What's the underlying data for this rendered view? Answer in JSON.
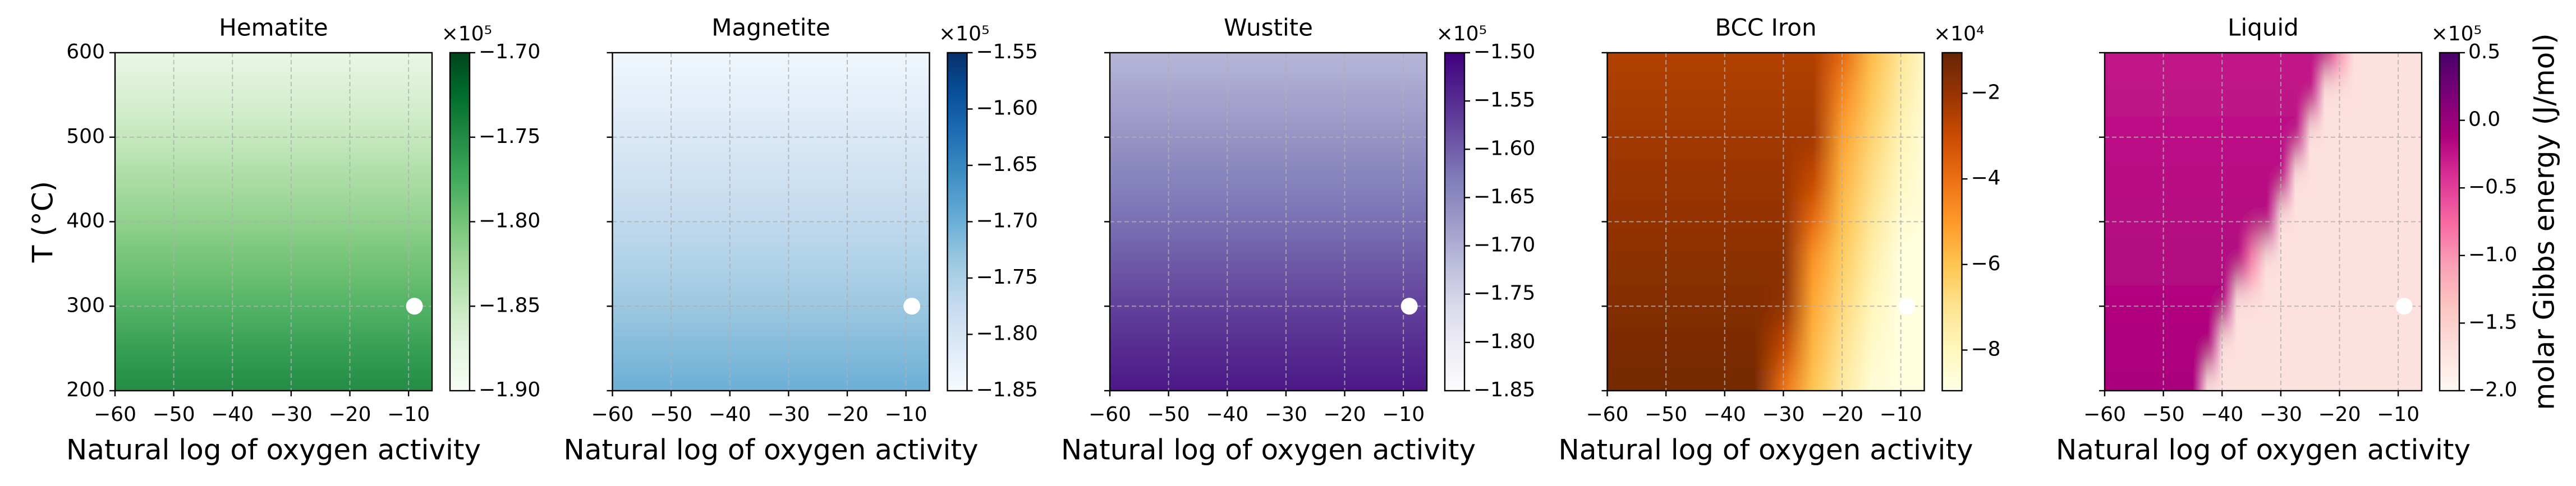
{
  "chart_data": [
    {
      "type": "heatmap",
      "title": "Hematite",
      "xlabel": "Natural log of oxygen activity",
      "ylabel": "T (°C)",
      "xlim": [
        -60,
        -6
      ],
      "xticks": [
        {
          "value": -60,
          "label": "−60"
        },
        {
          "value": -50,
          "label": "−50"
        },
        {
          "value": -40,
          "label": "−40"
        },
        {
          "value": -30,
          "label": "−30"
        },
        {
          "value": -20,
          "label": "−20"
        },
        {
          "value": -10,
          "label": "−10"
        }
      ],
      "ylim": [
        200,
        600
      ],
      "yticks": [
        200,
        300,
        400,
        500,
        600
      ],
      "ytick_labels": true,
      "grid": true,
      "x_grid": [
        -60,
        -6
      ],
      "y_grid": [
        200,
        250,
        300,
        350,
        400,
        450,
        500,
        550,
        600
      ],
      "z": [
        [
          -1.75,
          -1.75
        ],
        [
          -1.766,
          -1.766
        ],
        [
          -1.783,
          -1.783
        ],
        [
          -1.799,
          -1.799
        ],
        [
          -1.815,
          -1.815
        ],
        [
          -1.831,
          -1.831
        ],
        [
          -1.848,
          -1.848
        ],
        [
          -1.864,
          -1.864
        ],
        [
          -1.88,
          -1.88
        ]
      ],
      "point": {
        "x": -9,
        "y": 300,
        "color": "#ffffff"
      },
      "colorbar": {
        "lim": [
          -1.9,
          -1.7
        ],
        "ticks": [
          {
            "value": -1.9,
            "label": "−1.90"
          },
          {
            "value": -1.85,
            "label": "−1.85"
          },
          {
            "value": -1.8,
            "label": "−1.80"
          },
          {
            "value": -1.75,
            "label": "−1.75"
          },
          {
            "value": -1.7,
            "label": "−1.70"
          }
        ],
        "multiplier": "×10⁵",
        "colormap": [
          "#f7fcf5",
          "#e5f5e0",
          "#c7e9c0",
          "#a1d99b",
          "#74c476",
          "#41ab5d",
          "#238b45",
          "#006d2c",
          "#00441b"
        ]
      }
    },
    {
      "type": "heatmap",
      "title": "Magnetite",
      "xlabel": "Natural log of oxygen activity",
      "xlim": [
        -60,
        -6
      ],
      "xticks": [
        {
          "value": -60,
          "label": "−60"
        },
        {
          "value": -50,
          "label": "−50"
        },
        {
          "value": -40,
          "label": "−40"
        },
        {
          "value": -30,
          "label": "−30"
        },
        {
          "value": -20,
          "label": "−20"
        },
        {
          "value": -10,
          "label": "−10"
        }
      ],
      "ylim": [
        200,
        600
      ],
      "yticks": [
        200,
        300,
        400,
        500,
        600
      ],
      "ytick_labels": false,
      "grid": true,
      "x_grid": [
        -60,
        -6
      ],
      "y_grid": [
        200,
        250,
        300,
        350,
        400,
        450,
        500,
        550,
        600
      ],
      "z": [
        [
          -1.7,
          -1.7
        ],
        [
          -1.718,
          -1.718
        ],
        [
          -1.735,
          -1.735
        ],
        [
          -1.753,
          -1.753
        ],
        [
          -1.77,
          -1.77
        ],
        [
          -1.788,
          -1.788
        ],
        [
          -1.805,
          -1.805
        ],
        [
          -1.823,
          -1.823
        ],
        [
          -1.84,
          -1.84
        ]
      ],
      "point": {
        "x": -9,
        "y": 300,
        "color": "#ffffff"
      },
      "colorbar": {
        "lim": [
          -1.85,
          -1.55
        ],
        "ticks": [
          {
            "value": -1.85,
            "label": "−1.85"
          },
          {
            "value": -1.8,
            "label": "−1.80"
          },
          {
            "value": -1.75,
            "label": "−1.75"
          },
          {
            "value": -1.7,
            "label": "−1.70"
          },
          {
            "value": -1.65,
            "label": "−1.65"
          },
          {
            "value": -1.6,
            "label": "−1.60"
          },
          {
            "value": -1.55,
            "label": "−1.55"
          }
        ],
        "multiplier": "×10⁵",
        "colormap": [
          "#f7fbff",
          "#deebf7",
          "#c6dbef",
          "#9ecae1",
          "#6baed6",
          "#4292c6",
          "#2171b5",
          "#08519c",
          "#08306b"
        ]
      }
    },
    {
      "type": "heatmap",
      "title": "Wustite",
      "xlabel": "Natural log of oxygen activity",
      "xlim": [
        -60,
        -6
      ],
      "xticks": [
        {
          "value": -60,
          "label": "−60"
        },
        {
          "value": -50,
          "label": "−50"
        },
        {
          "value": -40,
          "label": "−40"
        },
        {
          "value": -30,
          "label": "−30"
        },
        {
          "value": -20,
          "label": "−20"
        },
        {
          "value": -10,
          "label": "−10"
        }
      ],
      "ylim": [
        200,
        600
      ],
      "yticks": [
        200,
        300,
        400,
        500,
        600
      ],
      "ytick_labels": false,
      "grid": true,
      "x_grid": [
        -60,
        -6
      ],
      "y_grid": [
        200,
        250,
        300,
        350,
        400,
        450,
        500,
        550,
        600
      ],
      "z": [
        [
          -1.524,
          -1.524
        ],
        [
          -1.547,
          -1.547
        ],
        [
          -1.571,
          -1.571
        ],
        [
          -1.594,
          -1.594
        ],
        [
          -1.617,
          -1.617
        ],
        [
          -1.64,
          -1.64
        ],
        [
          -1.664,
          -1.664
        ],
        [
          -1.687,
          -1.687
        ],
        [
          -1.71,
          -1.71
        ]
      ],
      "point": {
        "x": -9,
        "y": 300,
        "color": "#ffffff"
      },
      "colorbar": {
        "lim": [
          -1.85,
          -1.5
        ],
        "ticks": [
          {
            "value": -1.85,
            "label": "−1.85"
          },
          {
            "value": -1.8,
            "label": "−1.80"
          },
          {
            "value": -1.75,
            "label": "−1.75"
          },
          {
            "value": -1.7,
            "label": "−1.70"
          },
          {
            "value": -1.65,
            "label": "−1.65"
          },
          {
            "value": -1.6,
            "label": "−1.60"
          },
          {
            "value": -1.55,
            "label": "−1.55"
          },
          {
            "value": -1.5,
            "label": "−1.50"
          }
        ],
        "multiplier": "×10⁵",
        "colormap": [
          "#fcfbfd",
          "#efedf5",
          "#dadaeb",
          "#bcbddc",
          "#9e9ac8",
          "#807dba",
          "#6a51a3",
          "#54278f",
          "#3f007d"
        ]
      }
    },
    {
      "type": "heatmap",
      "title": "BCC Iron",
      "xlabel": "Natural log of oxygen activity",
      "xlim": [
        -60,
        -6
      ],
      "xticks": [
        {
          "value": -60,
          "label": "−60"
        },
        {
          "value": -50,
          "label": "−50"
        },
        {
          "value": -40,
          "label": "−40"
        },
        {
          "value": -30,
          "label": "−30"
        },
        {
          "value": -20,
          "label": "−20"
        },
        {
          "value": -10,
          "label": "−10"
        }
      ],
      "ylim": [
        200,
        600
      ],
      "yticks": [
        200,
        300,
        400,
        500,
        600
      ],
      "ytick_labels": false,
      "grid": true,
      "x_grid": [
        -60,
        -55,
        -50,
        -45,
        -40,
        -35,
        -30,
        -25,
        -20,
        -15,
        -10,
        -5
      ],
      "y_grid": [
        200,
        250,
        300,
        350,
        400,
        450,
        500,
        550,
        600
      ],
      "z": [
        [
          -1.3,
          -1.3,
          -1.3,
          -1.3,
          -1.3,
          -1.3,
          -4.08,
          -6.03,
          -7.31,
          -8.6,
          -8.8,
          -8.8
        ],
        [
          -1.45,
          -1.45,
          -1.45,
          -1.45,
          -1.45,
          -1.45,
          -2.87,
          -5.67,
          -6.95,
          -8.24,
          -8.8,
          -8.8
        ],
        [
          -1.6,
          -1.6,
          -1.6,
          -1.6,
          -1.6,
          -1.6,
          -1.81,
          -5.32,
          -6.62,
          -7.91,
          -8.8,
          -8.8
        ],
        [
          -1.75,
          -1.75,
          -1.75,
          -1.75,
          -1.75,
          -1.75,
          -1.75,
          -4.92,
          -6.26,
          -7.57,
          -8.8,
          -8.8
        ],
        [
          -1.9,
          -1.9,
          -1.9,
          -1.9,
          -1.9,
          -1.9,
          -1.9,
          -3.84,
          -5.9,
          -7.19,
          -8.47,
          -8.8
        ],
        [
          -2.05,
          -2.05,
          -2.05,
          -2.05,
          -2.05,
          -2.05,
          -2.05,
          -2.86,
          -5.54,
          -6.83,
          -8.11,
          -8.8
        ],
        [
          -2.2,
          -2.2,
          -2.2,
          -2.2,
          -2.2,
          -2.2,
          -2.2,
          -2.2,
          -5.19,
          -6.48,
          -7.77,
          -8.8
        ],
        [
          -2.35,
          -2.35,
          -2.35,
          -2.35,
          -2.35,
          -2.35,
          -2.35,
          -2.35,
          -4.6,
          -6.13,
          -7.41,
          -8.6
        ],
        [
          -2.5,
          -2.5,
          -2.5,
          -2.5,
          -2.5,
          -2.5,
          -2.5,
          -2.5,
          -3.75,
          -5.77,
          -7.06,
          -8.34
        ]
      ],
      "point": {
        "x": -9,
        "y": 300,
        "color": "#ffffff"
      },
      "colorbar": {
        "lim": [
          -8.95,
          -1.05
        ],
        "ticks": [
          {
            "value": -8,
            "label": "−8"
          },
          {
            "value": -6,
            "label": "−6"
          },
          {
            "value": -4,
            "label": "−4"
          },
          {
            "value": -2,
            "label": "−2"
          }
        ],
        "multiplier": "×10⁴",
        "colormap": [
          "#ffffe5",
          "#fff7bc",
          "#fee391",
          "#fec44f",
          "#fe9929",
          "#ec7014",
          "#cc4c02",
          "#993404",
          "#662506"
        ]
      }
    },
    {
      "type": "heatmap",
      "title": "Liquid",
      "xlabel": "Natural log of oxygen activity",
      "xlim": [
        -60,
        -6
      ],
      "xticks": [
        {
          "value": -60,
          "label": "−60"
        },
        {
          "value": -50,
          "label": "−50"
        },
        {
          "value": -40,
          "label": "−40"
        },
        {
          "value": -30,
          "label": "−30"
        },
        {
          "value": -20,
          "label": "−20"
        },
        {
          "value": -10,
          "label": "−10"
        }
      ],
      "ylim": [
        200,
        600
      ],
      "yticks": [
        200,
        300,
        400,
        500,
        600
      ],
      "ytick_labels": false,
      "grid": true,
      "x_grid": [
        -60,
        -57.5,
        -55,
        -52.5,
        -50,
        -47.5,
        -45,
        -42.5,
        -40,
        -37.5,
        -35,
        -32.5,
        -30,
        -27.5,
        -25,
        -22.5,
        -20,
        -17.5,
        -15,
        -12.5,
        -10,
        -7.5,
        -5
      ],
      "y_grid": [
        200,
        250,
        300,
        350,
        400,
        450,
        500,
        550,
        600
      ],
      "z": [
        [
          -0.1,
          -0.1,
          -0.1,
          -0.1,
          -0.1,
          -0.1,
          -0.1,
          -1.7,
          -1.7,
          -1.7,
          -1.7,
          -1.7,
          -1.7,
          -1.7,
          -1.7,
          -1.7,
          -1.7,
          -1.7,
          -1.7,
          -1.7,
          -1.7,
          -1.7,
          -1.7
        ],
        [
          -0.12,
          -0.12,
          -0.12,
          -0.12,
          -0.12,
          -0.12,
          -0.12,
          -0.12,
          -1.7,
          -1.7,
          -1.7,
          -1.7,
          -1.7,
          -1.7,
          -1.7,
          -1.7,
          -1.7,
          -1.7,
          -1.7,
          -1.7,
          -1.7,
          -1.7,
          -1.7
        ],
        [
          -0.14,
          -0.14,
          -0.14,
          -0.14,
          -0.14,
          -0.14,
          -0.14,
          -0.14,
          -0.14,
          -1.7,
          -1.7,
          -1.7,
          -1.7,
          -1.7,
          -1.7,
          -1.7,
          -1.7,
          -1.7,
          -1.7,
          -1.7,
          -1.7,
          -1.7,
          -1.7
        ],
        [
          -0.16,
          -0.16,
          -0.16,
          -0.16,
          -0.16,
          -0.16,
          -0.16,
          -0.16,
          -0.16,
          -0.16,
          -0.93,
          -1.7,
          -1.7,
          -1.7,
          -1.7,
          -1.7,
          -1.7,
          -1.7,
          -1.7,
          -1.7,
          -1.7,
          -1.7,
          -1.7
        ],
        [
          -0.18,
          -0.18,
          -0.18,
          -0.18,
          -0.18,
          -0.18,
          -0.18,
          -0.18,
          -0.18,
          -0.18,
          -0.18,
          -0.18,
          -1.7,
          -1.7,
          -1.7,
          -1.7,
          -1.7,
          -1.7,
          -1.7,
          -1.7,
          -1.7,
          -1.7,
          -1.7
        ],
        [
          -0.2,
          -0.2,
          -0.2,
          -0.2,
          -0.2,
          -0.2,
          -0.2,
          -0.2,
          -0.2,
          -0.2,
          -0.2,
          -0.2,
          -0.2,
          -1.7,
          -1.7,
          -1.7,
          -1.7,
          -1.7,
          -1.7,
          -1.7,
          -1.7,
          -1.7,
          -1.7
        ],
        [
          -0.22,
          -0.22,
          -0.22,
          -0.22,
          -0.22,
          -0.22,
          -0.22,
          -0.22,
          -0.22,
          -0.22,
          -0.22,
          -0.22,
          -0.22,
          -0.22,
          -1.7,
          -1.7,
          -1.7,
          -1.7,
          -1.7,
          -1.7,
          -1.7,
          -1.7,
          -1.7
        ],
        [
          -0.24,
          -0.24,
          -0.24,
          -0.24,
          -0.24,
          -0.24,
          -0.24,
          -0.24,
          -0.24,
          -0.24,
          -0.24,
          -0.24,
          -0.24,
          -0.24,
          -0.24,
          -1.7,
          -1.7,
          -1.7,
          -1.7,
          -1.7,
          -1.7,
          -1.7,
          -1.7
        ],
        [
          -0.25,
          -0.25,
          -0.25,
          -0.25,
          -0.25,
          -0.25,
          -0.25,
          -0.25,
          -0.25,
          -0.25,
          -0.25,
          -0.25,
          -0.25,
          -0.25,
          -0.25,
          -0.25,
          -0.98,
          -1.7,
          -1.7,
          -1.7,
          -1.7,
          -1.7,
          -1.7
        ]
      ],
      "point": {
        "x": -9,
        "y": 300,
        "color": "#ffffff"
      },
      "colorbar": {
        "lim": [
          -2.0,
          0.5
        ],
        "ticks": [
          {
            "value": -2.0,
            "label": "−2.0"
          },
          {
            "value": -1.5,
            "label": "−1.5"
          },
          {
            "value": -1.0,
            "label": "−1.0"
          },
          {
            "value": -0.5,
            "label": "−0.5"
          },
          {
            "value": 0,
            "label": "0.0"
          },
          0.5
        ],
        "multiplier": "×10⁵",
        "label": "molar Gibbs energy (J/mol)",
        "colormap": [
          "#fff7f3",
          "#fde0dd",
          "#fcc5c0",
          "#fa9fb5",
          "#f768a1",
          "#dd3497",
          "#ae017e",
          "#7a0177",
          "#49006a"
        ]
      }
    }
  ]
}
